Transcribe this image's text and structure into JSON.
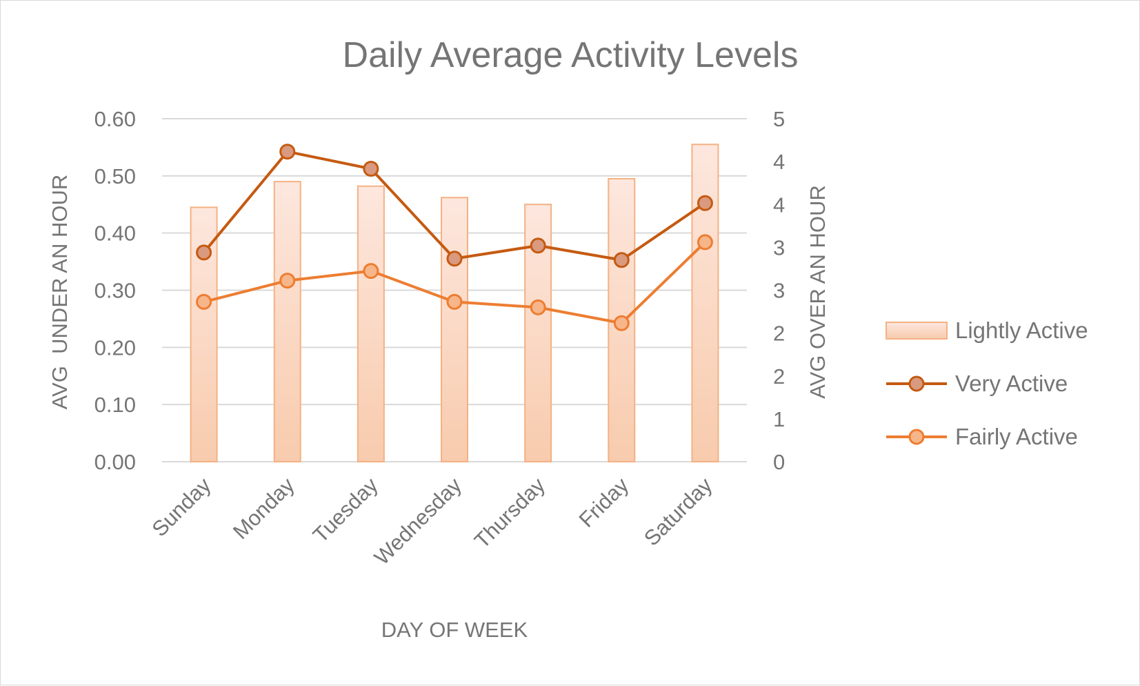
{
  "chart_data": {
    "type": "bar",
    "title": "Daily Average Activity Levels",
    "xlabel": "DAY OF WEEK",
    "ylabel": "AVG  UNDER AN HOUR",
    "y2label": "AVG OVER AN HOUR",
    "categories": [
      "Sunday",
      "Monday",
      "Tuesday",
      "Wednesday",
      "Thursday",
      "Friday",
      "Saturday"
    ],
    "ylim": [
      0,
      0.6
    ],
    "y_ticks": [
      "0.00",
      "0.10",
      "0.20",
      "0.30",
      "0.40",
      "0.50",
      "0.60"
    ],
    "y2lim": [
      0,
      5
    ],
    "y2_ticks": [
      "0",
      "1",
      "2",
      "2",
      "3",
      "3",
      "4",
      "4",
      "5"
    ],
    "grid": true,
    "legend_position": "right",
    "series": [
      {
        "name": "Lightly Active",
        "type": "bar",
        "axis": "left",
        "values": [
          0.445,
          0.49,
          0.482,
          0.462,
          0.45,
          0.495,
          0.555
        ],
        "color": "#f8cbad"
      },
      {
        "name": "Very Active",
        "type": "line",
        "axis": "right",
        "values": [
          3.05,
          4.52,
          4.27,
          2.96,
          3.15,
          2.94,
          3.77
        ],
        "color": "#c55a11"
      },
      {
        "name": "Fairly Active",
        "type": "line",
        "axis": "right",
        "values": [
          2.33,
          2.64,
          2.78,
          2.33,
          2.25,
          2.02,
          3.2
        ],
        "color": "#ed7d31"
      }
    ]
  }
}
